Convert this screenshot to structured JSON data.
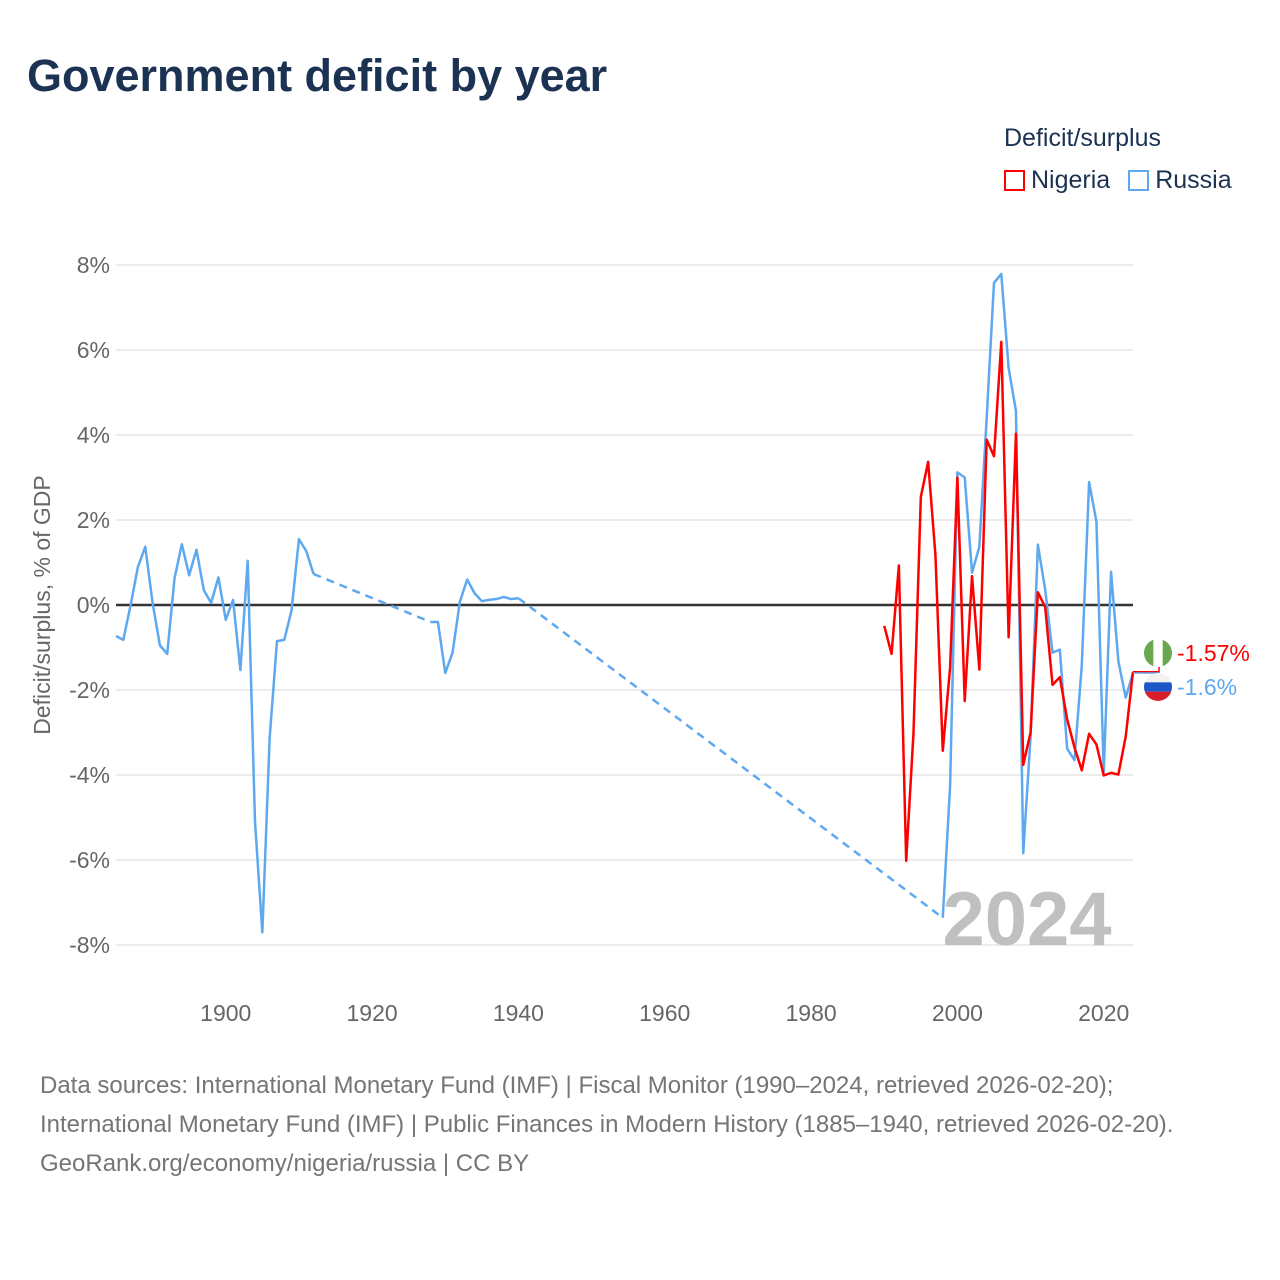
{
  "title": "Government deficit by year",
  "legend": {
    "title": "Deficit/surplus",
    "items": [
      {
        "label": "Nigeria",
        "color": "#ff0000"
      },
      {
        "label": "Russia",
        "color": "#5ea8ef"
      }
    ]
  },
  "chart_data": {
    "type": "line",
    "title": "Government deficit by year",
    "ylabel": "Deficit/surplus, % of GDP",
    "xlabel": "",
    "xlim": [
      1885,
      2024
    ],
    "ylim": [
      -8,
      8
    ],
    "yticks": [
      8,
      6,
      4,
      2,
      0,
      -2,
      -4,
      -6,
      -8
    ],
    "ytick_labels": [
      "8%",
      "6%",
      "4%",
      "2%",
      "0%",
      "-2%",
      "-4%",
      "-6%",
      "-8%"
    ],
    "xticks": [
      1900,
      1920,
      1940,
      1960,
      1980,
      2000,
      2020
    ],
    "xtick_labels": [
      "1900",
      "1920",
      "1940",
      "1960",
      "1980",
      "2000",
      "2020"
    ],
    "grid": true,
    "year_watermark": "2024",
    "series": [
      {
        "name": "Nigeria",
        "color": "#ff0000",
        "end_label": "-1.57%",
        "x": [
          1990,
          1991,
          1992,
          1993,
          1994,
          1995,
          1996,
          1997,
          1998,
          1999,
          2000,
          2001,
          2002,
          2003,
          2004,
          2005,
          2006,
          2007,
          2008,
          2009,
          2010,
          2011,
          2012,
          2013,
          2014,
          2015,
          2016,
          2017,
          2018,
          2019,
          2020,
          2021,
          2022,
          2023,
          2024
        ],
        "y": [
          -0.49,
          -1.15,
          0.93,
          -6.02,
          -3.0,
          2.54,
          3.37,
          1.17,
          -3.43,
          -1.47,
          3.0,
          -2.26,
          0.68,
          -1.52,
          3.89,
          3.5,
          6.19,
          -0.76,
          4.03,
          -3.76,
          -3.0,
          0.3,
          -0.05,
          -1.88,
          -1.7,
          -2.69,
          -3.35,
          -3.89,
          -3.03,
          -3.28,
          -4.01,
          -3.95,
          -3.99,
          -3.1,
          -1.57
        ]
      },
      {
        "name": "Russia",
        "color": "#5ea8ef",
        "end_label": "-1.6%",
        "x": [
          1885,
          1886,
          1887,
          1888,
          1889,
          1890,
          1891,
          1892,
          1893,
          1894,
          1895,
          1896,
          1897,
          1898,
          1899,
          1900,
          1901,
          1902,
          1903,
          1904,
          1905,
          1906,
          1907,
          1908,
          1909,
          1910,
          1911,
          1912,
          1928,
          1929,
          1930,
          1931,
          1932,
          1933,
          1934,
          1935,
          1936,
          1937,
          1938,
          1939,
          1940,
          1998,
          1999,
          2000,
          2001,
          2002,
          2003,
          2004,
          2005,
          2006,
          2007,
          2008,
          2009,
          2010,
          2011,
          2012,
          2013,
          2014,
          2015,
          2016,
          2017,
          2018,
          2019,
          2020,
          2021,
          2022,
          2023,
          2024
        ],
        "y": [
          -0.73,
          -0.82,
          0.0,
          0.9,
          1.37,
          0.05,
          -0.95,
          -1.15,
          0.63,
          1.43,
          0.7,
          1.3,
          0.35,
          0.05,
          0.65,
          -0.35,
          0.12,
          -1.53,
          1.04,
          -5.1,
          -7.7,
          -3.13,
          -0.85,
          -0.82,
          -0.12,
          1.55,
          1.27,
          0.73,
          -0.4,
          -0.4,
          -1.6,
          -1.12,
          0.08,
          0.6,
          0.28,
          0.09,
          0.12,
          0.14,
          0.19,
          0.14,
          0.16,
          -7.36,
          -4.26,
          3.12,
          3.0,
          0.76,
          1.37,
          4.4,
          7.58,
          7.79,
          5.58,
          4.57,
          -5.84,
          -3.1,
          1.42,
          0.36,
          -1.12,
          -1.05,
          -3.38,
          -3.65,
          -1.42,
          2.89,
          1.96,
          -3.93,
          0.78,
          -1.32,
          -2.18,
          -1.6
        ]
      }
    ]
  },
  "footer": {
    "sources": "Data sources: International Monetary Fund (IMF) | Fiscal Monitor (1990–2024, retrieved 2026-02-20); International Monetary Fund (IMF) | Public Finances in Modern History (1885–1940, retrieved 2026-02-20).",
    "credit": "GeoRank.org/economy/nigeria/russia | CC BY"
  }
}
